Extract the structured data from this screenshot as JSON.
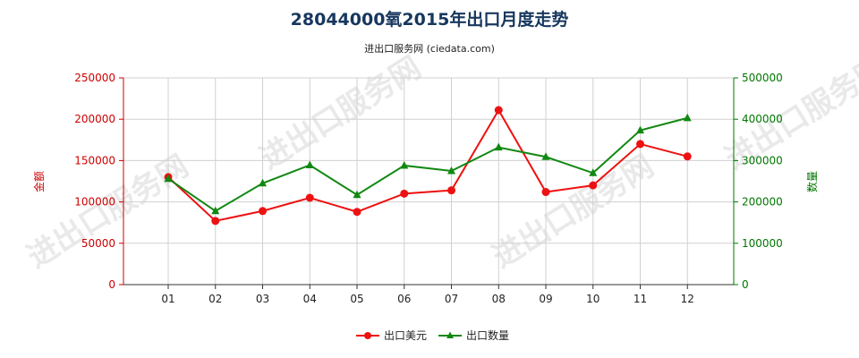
{
  "chart_data": {
    "type": "line",
    "title": "28044000氧2015年出口月度走势",
    "subtitle": "进出口服务网 (ciedata.com)",
    "categories": [
      "01",
      "02",
      "03",
      "04",
      "05",
      "06",
      "07",
      "08",
      "09",
      "10",
      "11",
      "12"
    ],
    "y_left": {
      "label": "金额",
      "range": [
        0,
        250000
      ],
      "ticks": [
        0,
        50000,
        100000,
        150000,
        200000,
        250000
      ]
    },
    "y_right": {
      "label": "数量",
      "range": [
        0,
        500000
      ],
      "ticks": [
        0,
        100000,
        200000,
        300000,
        400000,
        500000
      ]
    },
    "series": [
      {
        "name": "出口美元",
        "axis": "left",
        "color": "#ee1111",
        "values": [
          130000,
          77000,
          89000,
          105000,
          88000,
          110000,
          114000,
          211000,
          112000,
          120000,
          170000,
          155000
        ]
      },
      {
        "name": "出口数量",
        "axis": "right",
        "color": "#118811",
        "values": [
          256000,
          178000,
          245000,
          289000,
          217000,
          288000,
          275000,
          332000,
          309000,
          270000,
          373000,
          403000
        ]
      }
    ],
    "grid": true,
    "legend": "bottom-center"
  },
  "watermark": "进出口服务网"
}
